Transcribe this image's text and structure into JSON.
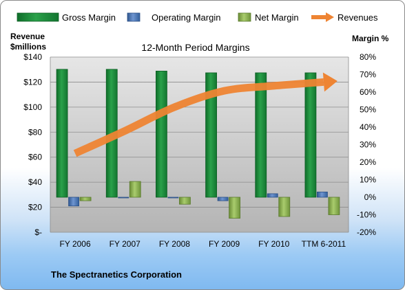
{
  "chart_data": {
    "type": "bar",
    "title": "12-Month Period Margins",
    "company": "The Spectranetics Corporation",
    "left_axis": {
      "label_line1": "Revenue",
      "label_line2": "$millions",
      "min": 0,
      "max": 140,
      "step": 20,
      "ticks": [
        "$-",
        "$20",
        "$40",
        "$60",
        "$80",
        "$100",
        "$120",
        "$140"
      ]
    },
    "right_axis": {
      "label": "Margin %",
      "min": -20,
      "max": 80,
      "step": 10,
      "ticks": [
        "-20%",
        "-10%",
        "0%",
        "10%",
        "20%",
        "30%",
        "40%",
        "50%",
        "60%",
        "70%",
        "80%"
      ]
    },
    "categories": [
      "FY 2006",
      "FY 2007",
      "FY 2008",
      "FY 2009",
      "FY 2010",
      "TTM 6-2011"
    ],
    "series": [
      {
        "name": "Gross Margin",
        "axis": "right",
        "kind": "bar",
        "color": "#1e8a3c",
        "values": [
          73,
          73,
          72,
          71,
          71,
          71
        ]
      },
      {
        "name": "Operating Margin",
        "axis": "right",
        "kind": "bar",
        "color": "#4a72b8",
        "values": [
          -5,
          0,
          0,
          -2,
          2,
          3
        ]
      },
      {
        "name": "Net Margin",
        "axis": "right",
        "kind": "bar",
        "color": "#8db650",
        "values": [
          -2,
          9,
          -4,
          -12,
          -11,
          -10
        ]
      },
      {
        "name": "Revenues",
        "axis": "left",
        "kind": "line",
        "color": "#ee8433",
        "values": [
          63,
          81,
          100,
          113,
          117,
          120
        ]
      }
    ],
    "legend_position": "top",
    "grid": true
  }
}
